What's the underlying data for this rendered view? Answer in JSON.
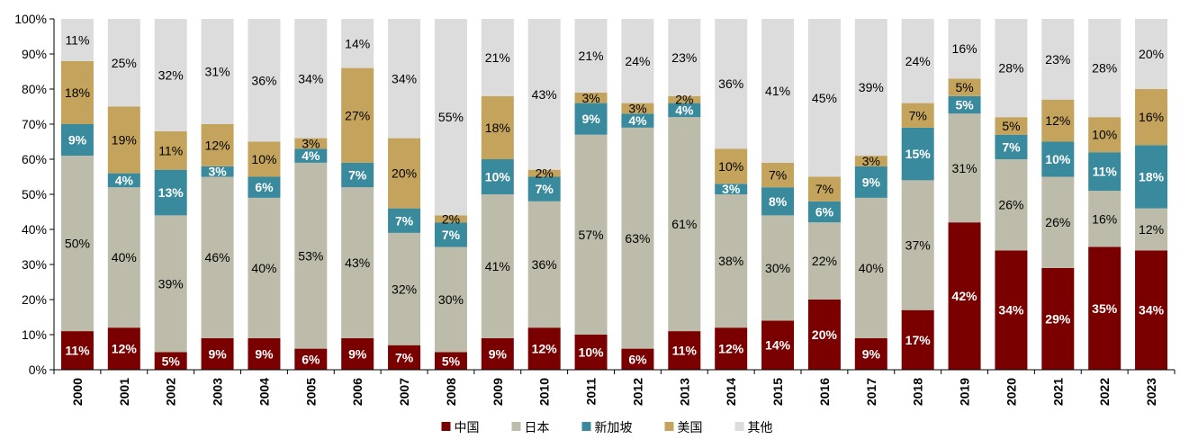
{
  "chart_data": {
    "type": "bar",
    "stacked": true,
    "percent": true,
    "categories": [
      "2000",
      "2001",
      "2002",
      "2003",
      "2004",
      "2005",
      "2006",
      "2007",
      "2008",
      "2009",
      "2010",
      "2011",
      "2012",
      "2013",
      "2014",
      "2015",
      "2016",
      "2017",
      "2018",
      "2019",
      "2020",
      "2021",
      "2022",
      "2023"
    ],
    "series": [
      {
        "name": "中国",
        "color": "#7a0000",
        "label_color": "#ffffff",
        "values": [
          11,
          12,
          5,
          9,
          9,
          6,
          9,
          7,
          5,
          9,
          12,
          10,
          6,
          11,
          12,
          14,
          20,
          9,
          17,
          42,
          34,
          29,
          35,
          34
        ]
      },
      {
        "name": "日本",
        "color": "#bdbcaa",
        "label_color": "#000000",
        "values": [
          50,
          40,
          39,
          46,
          40,
          53,
          43,
          32,
          30,
          41,
          36,
          57,
          63,
          61,
          38,
          30,
          22,
          40,
          37,
          31,
          26,
          26,
          16,
          12
        ]
      },
      {
        "name": "新加坡",
        "color": "#3a8a9e",
        "label_color": "#ffffff",
        "values": [
          9,
          4,
          13,
          3,
          6,
          4,
          7,
          7,
          7,
          10,
          7,
          9,
          4,
          4,
          3,
          8,
          6,
          9,
          15,
          5,
          7,
          10,
          11,
          18
        ]
      },
      {
        "name": "美国",
        "color": "#c4a35c",
        "label_color": "#000000",
        "values": [
          18,
          19,
          11,
          12,
          10,
          3,
          27,
          20,
          2,
          18,
          2,
          3,
          3,
          2,
          10,
          7,
          7,
          3,
          7,
          5,
          5,
          12,
          10,
          16
        ]
      },
      {
        "name": "其他",
        "color": "#dcdcdc",
        "label_color": "#000000",
        "values": [
          11,
          25,
          32,
          31,
          36,
          34,
          14,
          34,
          55,
          21,
          43,
          21,
          24,
          23,
          36,
          41,
          45,
          39,
          24,
          16,
          28,
          23,
          28,
          20
        ]
      }
    ],
    "yticks": [
      "0%",
      "10%",
      "20%",
      "30%",
      "40%",
      "50%",
      "60%",
      "70%",
      "80%",
      "90%",
      "100%"
    ],
    "ylim": [
      0,
      100
    ],
    "grid": false,
    "legend_position": "bottom-center",
    "title": "",
    "xlabel": "",
    "ylabel": ""
  }
}
